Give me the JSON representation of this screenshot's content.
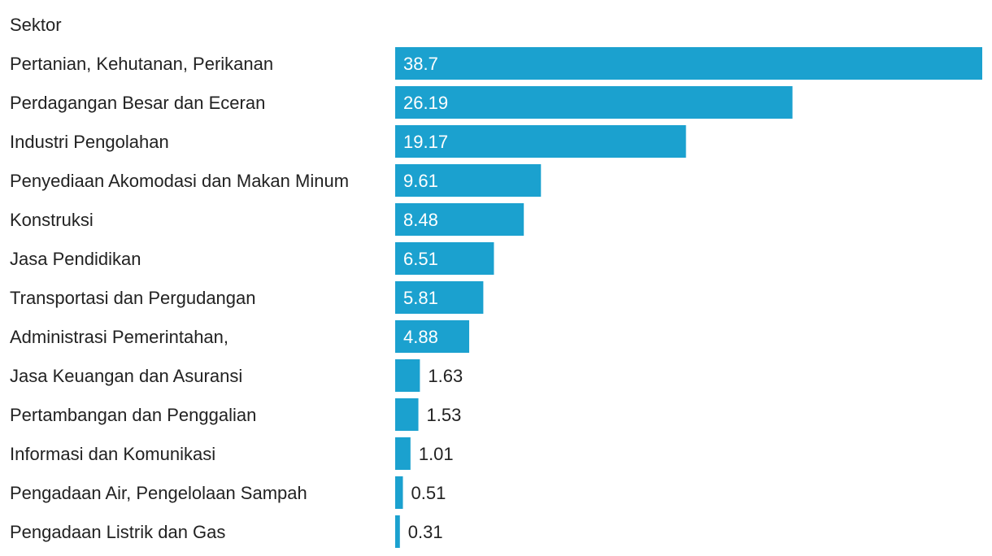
{
  "chart_data": {
    "type": "bar",
    "orientation": "horizontal",
    "column_header": "Sektor",
    "categories": [
      "Pertanian, Kehutanan, Perikanan",
      "Perdagangan Besar dan Eceran",
      "Industri Pengolahan",
      "Penyediaan Akomodasi dan Makan Minum",
      "Konstruksi",
      "Jasa Pendidikan",
      "Transportasi dan Pergudangan",
      "Administrasi Pemerintahan,",
      "Jasa Keuangan dan Asuransi",
      "Pertambangan dan Penggalian",
      "Informasi dan Komunikasi",
      "Pengadaan Air, Pengelolaan Sampah",
      "Pengadaan Listrik dan Gas"
    ],
    "values": [
      38.7,
      26.19,
      19.17,
      9.61,
      8.48,
      6.51,
      5.81,
      4.88,
      1.63,
      1.53,
      1.01,
      0.51,
      0.31
    ],
    "value_labels": [
      "38.7",
      "26.19",
      "19.17",
      "9.61",
      "8.48",
      "6.51",
      "5.81",
      "4.88",
      "1.63",
      "1.53",
      "1.01",
      "0.51",
      "0.31"
    ],
    "xlim": [
      0,
      38.7
    ],
    "grid": false,
    "legend": "none",
    "bar_color": "#1BA1CF"
  }
}
